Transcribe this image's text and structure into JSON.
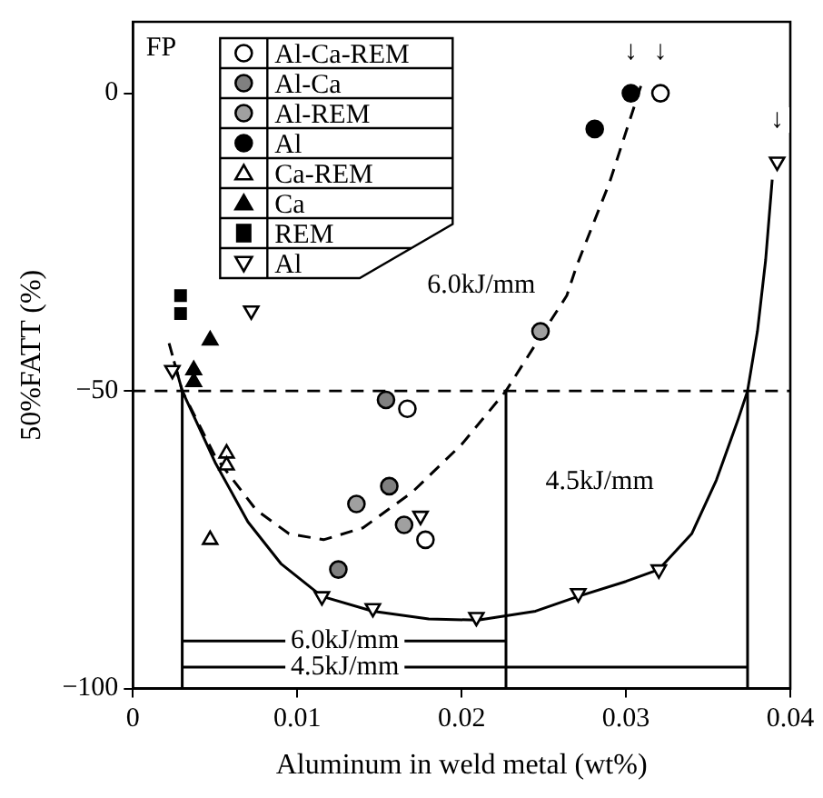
{
  "chart_data": {
    "type": "scatter",
    "xlabel": "Aluminum in weld metal (wt%)",
    "ylabel": "50%FATT (%)",
    "xlim": [
      0,
      0.04
    ],
    "xticks": [
      0,
      0.01,
      0.02,
      0.03,
      0.04
    ],
    "ylim": [
      -100,
      12
    ],
    "yticks": [
      {
        "value": -100,
        "label": "−100"
      },
      {
        "value": -50,
        "label": "−50"
      },
      0
    ],
    "grid": false,
    "legend": "top left",
    "series": [
      {
        "name": "Al-Ca-REM",
        "type": "scatter",
        "marker": "circle",
        "color": "#ffffff",
        "x": [
          0.0321,
          0.0167,
          0.0178
        ],
        "values": [
          0,
          -53,
          -75
        ]
      },
      {
        "name": "Al-Ca",
        "type": "scatter",
        "marker": "circle",
        "color": "#808080",
        "x": [
          0.0154,
          0.0156,
          0.0125
        ],
        "values": [
          -51.5,
          -66,
          -80
        ]
      },
      {
        "name": "Al-REM",
        "type": "scatter",
        "marker": "circle",
        "color": "#a0a0a0",
        "x": [
          0.0136,
          0.0165,
          0.0248
        ],
        "values": [
          -69,
          -72.5,
          -40
        ]
      },
      {
        "name": "Al",
        "type": "scatter",
        "marker": "circle",
        "color": "#000000",
        "x": [
          0.0303,
          0.0281
        ],
        "values": [
          0,
          -6
        ]
      },
      {
        "name": "Ca-REM",
        "type": "scatter",
        "marker": "triangle",
        "color": "#ffffff",
        "x": [
          0.0057,
          0.0057,
          0.0047
        ],
        "values": [
          -60.5,
          -62.5,
          -75
        ]
      },
      {
        "name": "Ca",
        "type": "scatter",
        "marker": "triangle",
        "color": "#000000",
        "x": [
          0.0047,
          0.0037,
          0.0037
        ],
        "values": [
          -41.5,
          -46.5,
          -48.5
        ]
      },
      {
        "name": "REM",
        "type": "scatter",
        "marker": "square",
        "color": "#000000",
        "x": [
          0.0029,
          0.0029
        ],
        "values": [
          -34,
          -37
        ]
      },
      {
        "name": "Al",
        "type": "scatter",
        "marker": "triangle-down",
        "color": "#ffffff",
        "x": [
          0.0072,
          0.0024,
          0.0175,
          0.0115,
          0.0146,
          0.0209,
          0.0271,
          0.032,
          0.0392
        ],
        "values": [
          -36.5,
          -46.5,
          -71,
          -84.5,
          -86.5,
          -88,
          -84,
          -80,
          -11.5
        ]
      },
      {
        "type": "line",
        "line_style": "dashed",
        "color": "#000000",
        "x": [
          0.0022,
          0.003,
          0.005,
          0.0075,
          0.0095,
          0.0116,
          0.014,
          0.017,
          0.02,
          0.0227,
          0.025,
          0.0264,
          0.027,
          0.029,
          0.031
        ],
        "values": [
          -42,
          -50,
          -61,
          -70,
          -74,
          -75,
          -73,
          -67,
          -59,
          -50,
          -40,
          -34,
          -29,
          -15,
          2
        ]
      },
      {
        "type": "line",
        "line_style": "solid",
        "color": "#000000",
        "x": [
          0.0025,
          0.003,
          0.005,
          0.007,
          0.009,
          0.0115,
          0.0146,
          0.018,
          0.021,
          0.0245,
          0.0271,
          0.03,
          0.032,
          0.034,
          0.0355,
          0.0368,
          0.0374,
          0.038,
          0.0385,
          0.0389
        ],
        "values": [
          -45,
          -50,
          -62,
          -72,
          -79,
          -84.5,
          -87,
          -88.3,
          -88.5,
          -87,
          -84.5,
          -82,
          -80,
          -74,
          -65,
          -55,
          -50,
          -40,
          -28,
          -14.5
        ]
      },
      {
        "type": "line",
        "line_style": "solid",
        "color": "#000000",
        "x": [
          0.003,
          0.003
        ],
        "values": [
          -100,
          -50
        ]
      },
      {
        "type": "line",
        "line_style": "solid",
        "color": "#000000",
        "x": [
          0.0227,
          0.0227
        ],
        "values": [
          -100,
          -50
        ]
      },
      {
        "type": "line",
        "line_style": "solid",
        "color": "#000000",
        "x": [
          0.0374,
          0.0374
        ],
        "values": [
          -100,
          -50
        ]
      },
      {
        "type": "line",
        "line_style": "solid",
        "color": "#000000",
        "x": [
          0.003,
          0.0227
        ],
        "values": [
          -92,
          -92
        ]
      },
      {
        "type": "line",
        "line_style": "solid",
        "color": "#000000",
        "x": [
          0.003,
          0.0374
        ],
        "values": [
          -96.4,
          -96.4
        ]
      }
    ],
    "ref_lines": [
      {
        "axis": "y",
        "value": -50,
        "color": "#000000",
        "line_style": "dashed"
      }
    ],
    "annotations": [
      "FP",
      "6.0kJ/mm",
      "4.5kJ/mm",
      {
        "text": "6.0kJ/mm",
        "x": 0.0129,
        "y": -92
      },
      {
        "text": "4.5kJ/mm",
        "x": 0.0129,
        "y": -96.4
      },
      {
        "text": "↓",
        "x": 0.0303,
        "y": 7
      },
      {
        "text": "↓",
        "x": 0.0321,
        "y": 7
      },
      {
        "text": "↓",
        "x": 0.0392,
        "y": -4.5
      }
    ]
  }
}
